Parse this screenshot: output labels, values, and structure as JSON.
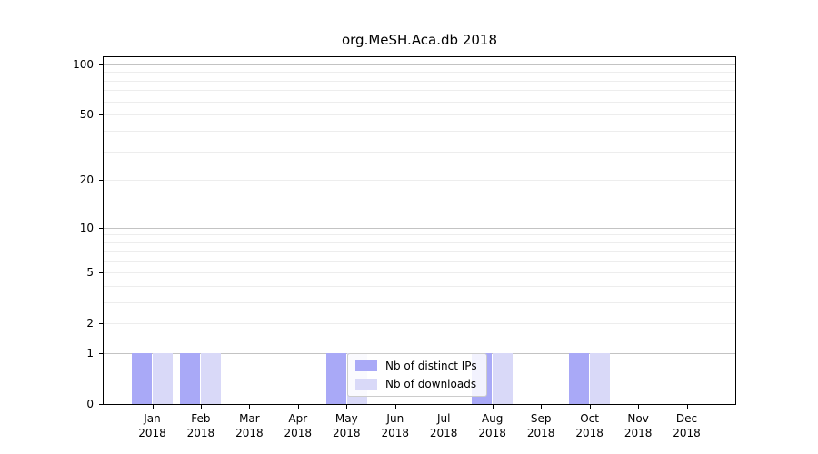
{
  "chart_data": {
    "type": "bar",
    "title": "org.MeSH.Aca.db 2018",
    "yscale": "log1p",
    "ylim": [
      0,
      110
    ],
    "yticks": [
      0,
      1,
      2,
      5,
      10,
      20,
      50,
      100
    ],
    "grid": "horizontal, minor log gridlines on, major at 1/10/100",
    "categories": [
      "Jan",
      "Feb",
      "Mar",
      "Apr",
      "May",
      "Jun",
      "Jul",
      "Aug",
      "Sep",
      "Oct",
      "Nov",
      "Dec"
    ],
    "x_year_label": "2018",
    "series": [
      {
        "name": "Nb of distinct IPs",
        "color": "#a9a9f7",
        "values": [
          1,
          1,
          0,
          0,
          1,
          0,
          0,
          1,
          0,
          1,
          0,
          0
        ]
      },
      {
        "name": "Nb of downloads",
        "color": "#d9d9f8",
        "values": [
          1,
          1,
          0,
          0,
          1,
          0,
          0,
          1,
          0,
          1,
          0,
          0
        ]
      }
    ],
    "legend": {
      "position": "inside-bottom-center",
      "items": [
        "Nb of distinct IPs",
        "Nb of downloads"
      ]
    },
    "colors": {
      "major_gridline": "#c3c3c3",
      "minor_gridline": "#ededed",
      "axis": "#000000",
      "text": "#000000",
      "background": "#ffffff"
    }
  }
}
